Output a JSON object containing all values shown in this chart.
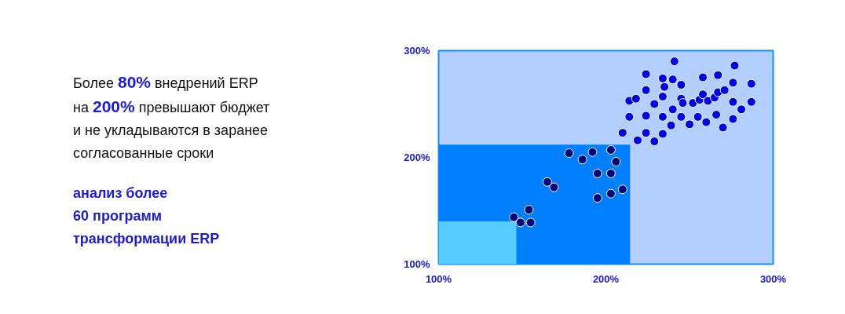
{
  "chart_data": {
    "type": "scatter",
    "marker": "circle",
    "grid": false,
    "xlim": [
      100,
      300
    ],
    "ylim": [
      100,
      300
    ],
    "xticks": [
      {
        "value": 100,
        "label": "100%"
      },
      {
        "value": 200,
        "label": "200%"
      },
      {
        "value": 300,
        "label": "300%"
      }
    ],
    "yticks": [
      {
        "value": 100,
        "label": "100%"
      },
      {
        "value": 200,
        "label": "200%"
      },
      {
        "value": 300,
        "label": "300%"
      }
    ],
    "annotations": [
      "Более 80% внедрений ERP\nна 200% превышают бюджет\nи не укладываются в заранее\nсогласованные сроки",
      "анализ более\n60 программ\nтрансформации ERP"
    ],
    "series": [
      {
        "type": "area",
        "marker": "none",
        "color": "#0080ff",
        "x": [
          100,
          214.5
        ],
        "values": [
          212,
          212
        ]
      },
      {
        "type": "area",
        "marker": "none",
        "color": "#55ccff",
        "x": [
          100,
          146.5
        ],
        "values": [
          140,
          140
        ]
      },
      {
        "color": "#000080",
        "x": [
          178,
          186,
          192,
          203,
          206,
          195,
          203,
          165,
          169,
          195,
          203,
          210,
          154,
          145,
          149,
          155
        ],
        "values": [
          204,
          198,
          205,
          207,
          196,
          185,
          185,
          177,
          172,
          162,
          166,
          170,
          151,
          144,
          139,
          139
        ]
      },
      {
        "color": "#0000e6",
        "x": [
          241,
          277,
          224,
          234,
          240,
          235,
          245,
          258,
          267,
          276,
          287,
          224,
          214,
          218,
          229,
          234,
          245,
          246,
          252,
          256,
          258,
          261,
          265,
          267,
          271,
          276,
          287,
          281,
          214,
          224,
          234,
          240,
          245,
          250,
          255,
          260,
          266,
          270,
          276,
          239,
          210,
          224,
          234,
          219,
          229
        ],
        "values": [
          290,
          286,
          278,
          274,
          273,
          266,
          268,
          275,
          277,
          270,
          269,
          263,
          253,
          255,
          250,
          257,
          255,
          251,
          251,
          254,
          259,
          253,
          256,
          261,
          263,
          252,
          252,
          245,
          238,
          239,
          238,
          245,
          238,
          231,
          238,
          233,
          240,
          228,
          236,
          230,
          223,
          223,
          222,
          216,
          215
        ]
      }
    ]
  }
}
